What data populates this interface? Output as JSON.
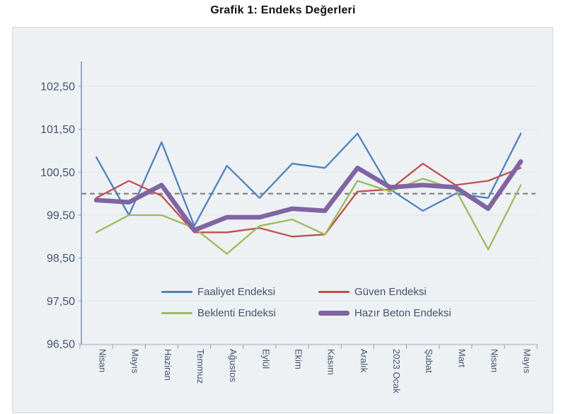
{
  "title": "Grafik 1: Endeks Değerleri",
  "chart_data": {
    "type": "line",
    "categories": [
      "Nisan",
      "Mayıs",
      "Haziran",
      "Temmuz",
      "Ağustos",
      "Eylül",
      "Ekim",
      "Kasım",
      "Aralık",
      "2023 Ocak",
      "Şubat",
      "Mart",
      "Nisan",
      "Mayıs"
    ],
    "series": [
      {
        "name": "Faaliyet Endeksi",
        "color": "#4F81BD",
        "line_width": 2.3,
        "values": [
          100.85,
          99.5,
          101.2,
          99.25,
          100.65,
          99.9,
          100.7,
          100.6,
          101.4,
          100.1,
          99.6,
          100.0,
          99.9,
          101.4
        ]
      },
      {
        "name": "Güven Endeksi",
        "color": "#C0504D",
        "line_width": 2.3,
        "values": [
          99.9,
          100.3,
          99.95,
          99.1,
          99.1,
          99.2,
          99.0,
          99.05,
          100.05,
          100.1,
          100.7,
          100.2,
          100.3,
          100.6
        ]
      },
      {
        "name": "Beklenti Endeksi",
        "color": "#9BBB59",
        "line_width": 2.3,
        "values": [
          99.1,
          99.5,
          99.5,
          99.2,
          98.6,
          99.25,
          99.4,
          99.05,
          100.3,
          100.05,
          100.35,
          100.1,
          98.7,
          100.2
        ]
      },
      {
        "name": "Hazır Beton Endeksi",
        "color": "#8064A2",
        "line_width": 6.5,
        "values": [
          99.85,
          99.8,
          100.2,
          99.15,
          99.45,
          99.45,
          99.65,
          99.6,
          100.6,
          100.15,
          100.2,
          100.15,
          99.65,
          100.75
        ]
      }
    ],
    "y_ticks": {
      "labels": [
        "102,50",
        "101,50",
        "100,50",
        "99,50",
        "98,50",
        "97,50",
        "96,50"
      ],
      "values": [
        102.5,
        101.5,
        100.5,
        99.5,
        98.5,
        97.5,
        96.5
      ]
    },
    "ylim": [
      96.5,
      102.5
    ],
    "xlabel": "",
    "ylabel": "",
    "reference_line": {
      "value": 100.0,
      "style": "dashed",
      "color": "#7F7F7F"
    },
    "grid": "horizontal",
    "legend_position": "bottom-inside",
    "legend_order": [
      "Faaliyet Endeksi",
      "Güven Endeksi",
      "Beklenti Endeksi",
      "Hazır Beton Endeksi"
    ]
  },
  "colors": {
    "frame_background": "#eef1f4",
    "frame_border": "#d3d9df",
    "gridline": "#dde4ec",
    "axis_line": "#8496B0",
    "x_axis_line": "#b7c1cd",
    "tick": "#8da0b8",
    "axis_label": "#44546A",
    "title_text": "#111111",
    "reference_line": "#7F7F7F"
  }
}
